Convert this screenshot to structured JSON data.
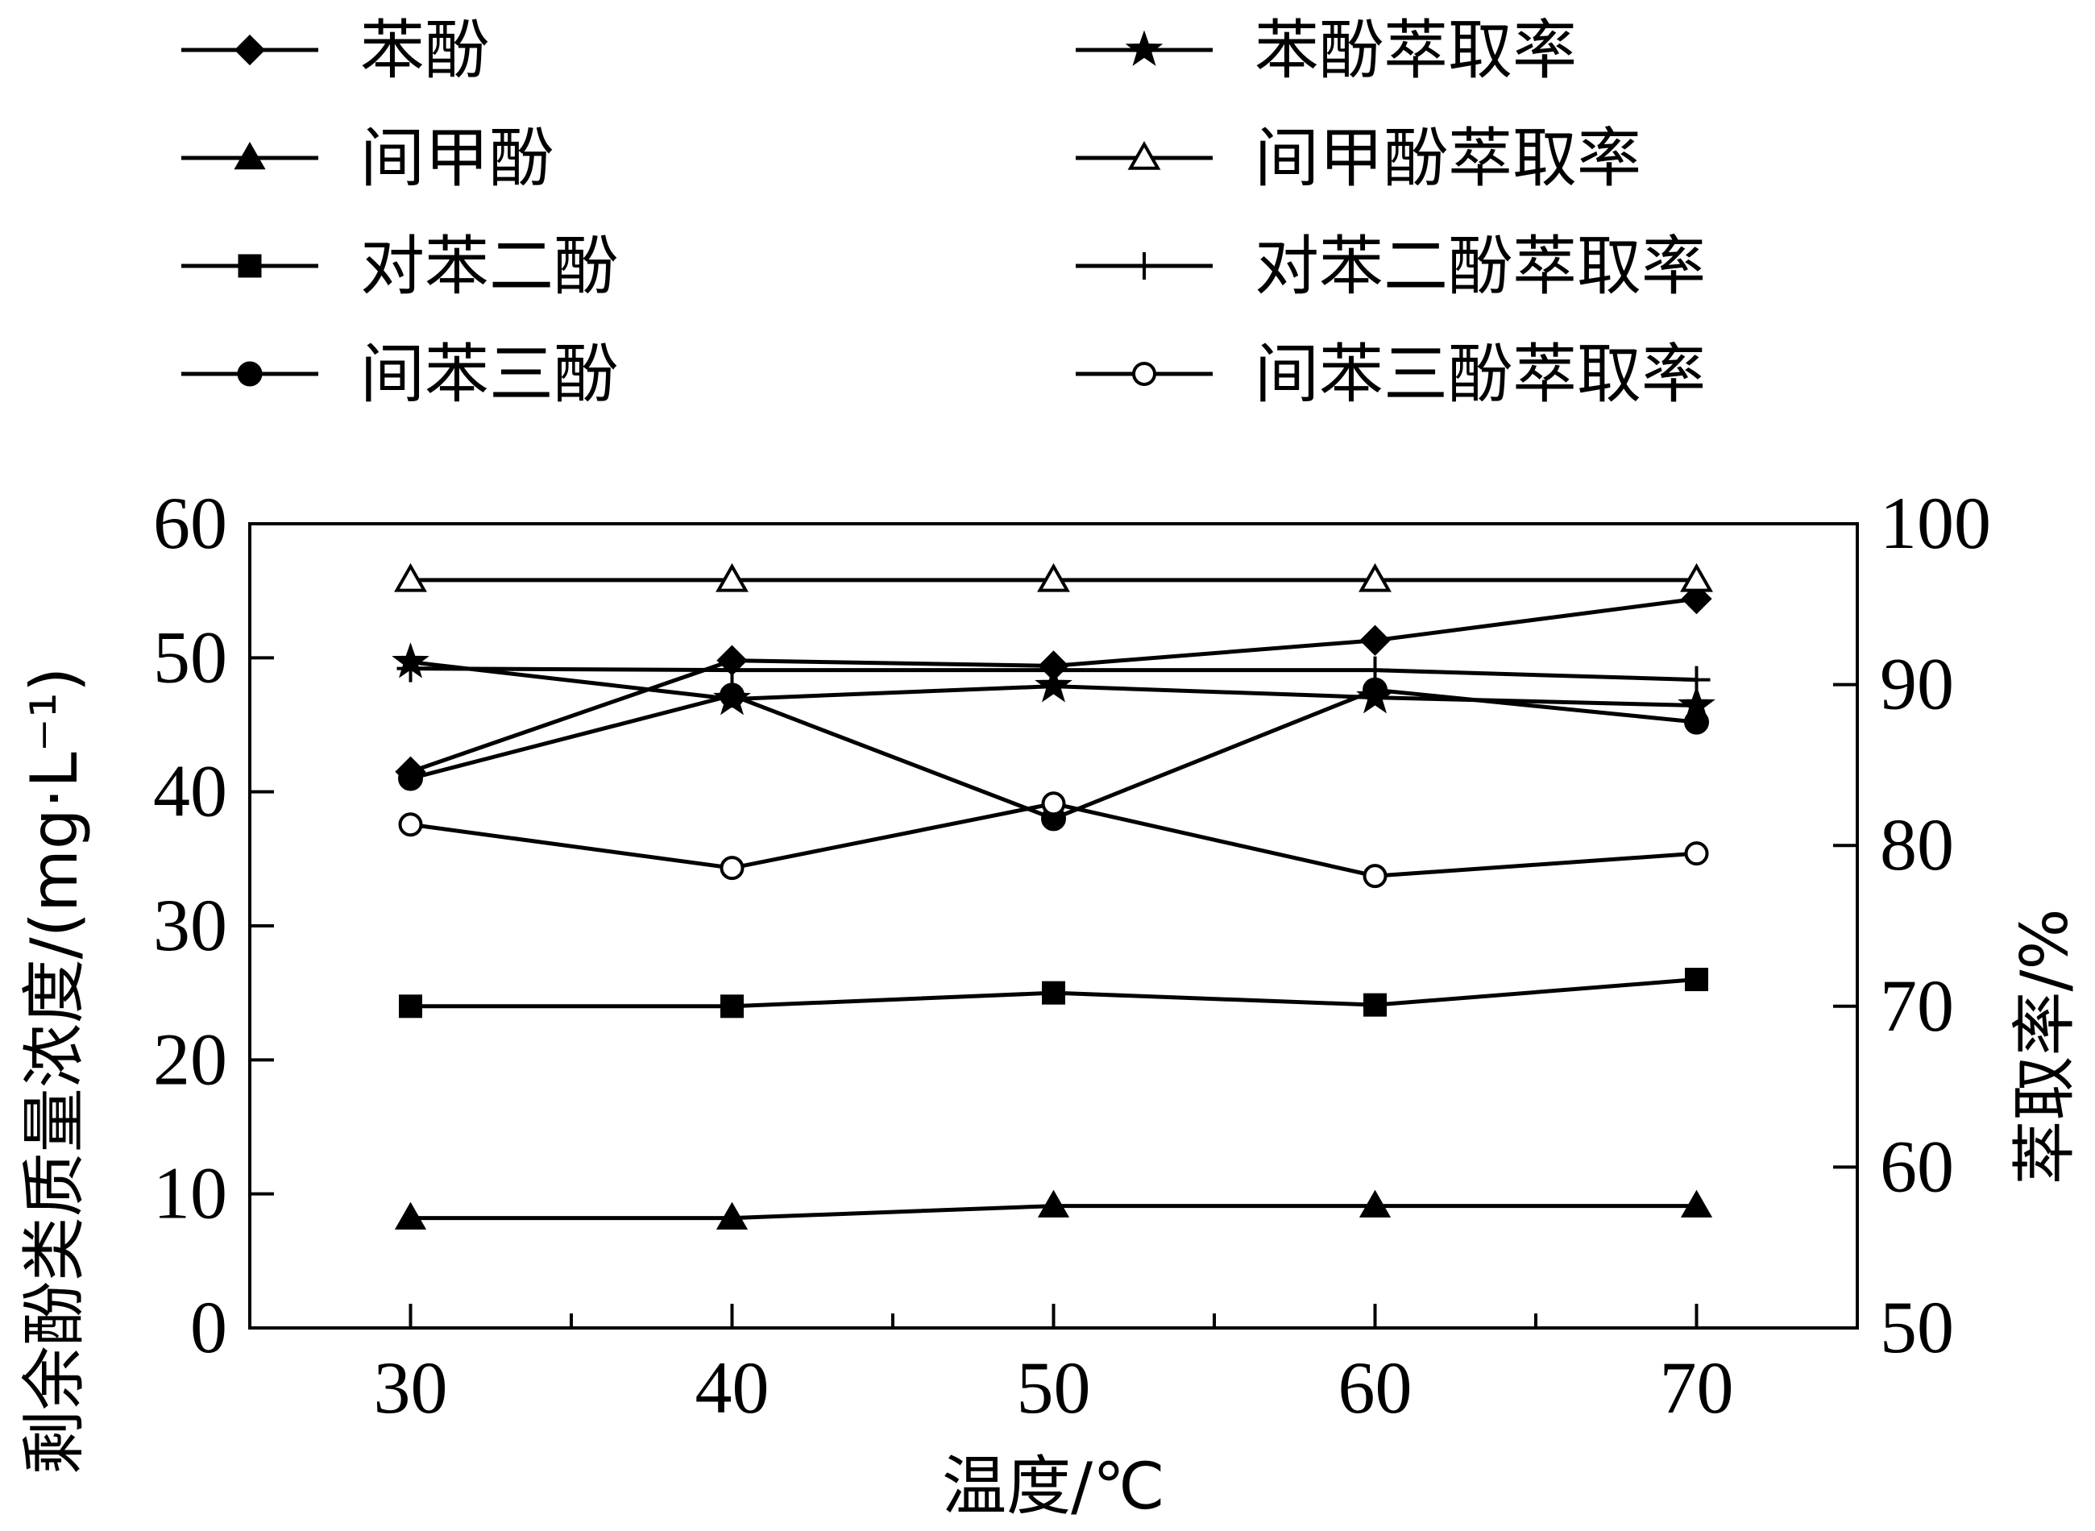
{
  "chart_data": {
    "type": "line",
    "x": [
      30,
      40,
      50,
      60,
      70
    ],
    "xticks": [
      30,
      40,
      50,
      60,
      70
    ],
    "xlabel": "温度/℃",
    "ylabel_left": "剩余酚类质量浓度/(mg·L⁻¹)",
    "ylabel_right": "萃取率/%",
    "ylim_left": [
      0,
      60
    ],
    "ylim_right": [
      50,
      100
    ],
    "yticks_left": [
      0,
      10,
      20,
      30,
      40,
      50,
      60
    ],
    "yticks_right": [
      50,
      60,
      70,
      80,
      90,
      100
    ],
    "xlim": [
      25,
      75
    ],
    "grid": false,
    "legend_position": "top",
    "series": [
      {
        "name": "苯酚",
        "axis": "left",
        "marker": "diamond-filled",
        "values": [
          41.5,
          49.8,
          49.4,
          51.3,
          54.4
        ]
      },
      {
        "name": "间甲酚",
        "axis": "left",
        "marker": "triangle-filled",
        "values": [
          8.2,
          8.2,
          9.1,
          9.1,
          9.1
        ]
      },
      {
        "name": "对苯二酚",
        "axis": "left",
        "marker": "square-filled",
        "values": [
          24.0,
          24.0,
          25.0,
          24.1,
          26.0
        ]
      },
      {
        "name": "间苯三酚",
        "axis": "left",
        "marker": "circle-filled",
        "values": [
          41.0,
          47.2,
          38.0,
          47.6,
          45.2
        ]
      },
      {
        "name": "苯酚萃取率",
        "axis": "right",
        "marker": "star-filled",
        "values": [
          91.4,
          89.1,
          89.9,
          89.2,
          88.7
        ]
      },
      {
        "name": "间甲酚萃取率",
        "axis": "right",
        "marker": "triangle-open",
        "values": [
          96.5,
          96.5,
          96.5,
          96.5,
          96.5
        ]
      },
      {
        "name": "对苯二酚萃取率",
        "axis": "right",
        "marker": "plus",
        "values": [
          91.0,
          90.9,
          90.9,
          90.9,
          90.3
        ]
      },
      {
        "name": "间苯三酚萃取率",
        "axis": "right",
        "marker": "circle-open",
        "values": [
          81.3,
          78.6,
          82.6,
          78.1,
          79.5
        ]
      }
    ]
  }
}
